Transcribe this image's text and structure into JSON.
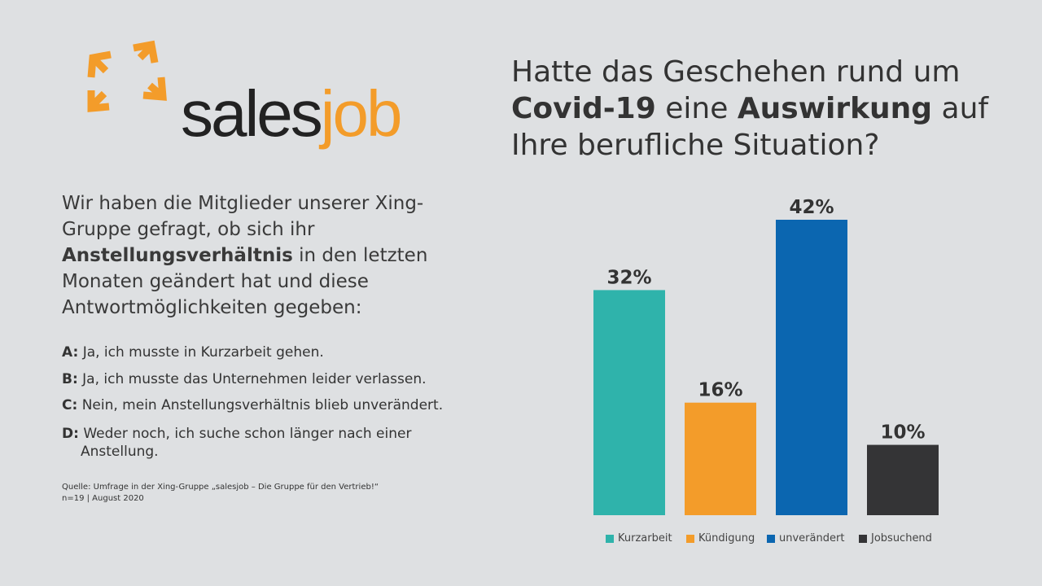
{
  "logo": {
    "word_part1": "sales",
    "word_part2": "job",
    "icon": "four-outward-arrows-icon"
  },
  "title": {
    "part1": "Hatte das Geschehen rund um",
    "bold1": "Covid-19",
    "part2": "eine",
    "bold2": "Auswirkung",
    "part3": "auf",
    "line3": "Ihre berufliche Situation?"
  },
  "intro": {
    "part1": "Wir haben die Mitglieder unserer Xing-Gruppe gefragt, ob sich ihr",
    "bold": "Anstellungsverhältnis",
    "part2": "in den letzten Monaten geändert hat und diese Antwortmöglichkeiten gegeben:"
  },
  "options": [
    {
      "key": "A:",
      "text": "Ja, ich musste in Kurzarbeit gehen."
    },
    {
      "key": "B:",
      "text": "Ja, ich musste das Unternehmen leider verlassen."
    },
    {
      "key": "C:",
      "text": "Nein, mein Anstellungsverhältnis blieb unverändert."
    },
    {
      "key": "D:",
      "text": "Weder noch, ich suche schon länger nach einer",
      "text2": "Anstellung."
    }
  ],
  "source": {
    "line1": "Quelle: Umfrage  in der Xing-Gruppe „salesjob – Die Gruppe für den Vertrieb!“",
    "line2": "n=19 | August 2020"
  },
  "colors": {
    "background": "#dee0e2",
    "orange": "#f39c2a",
    "teal": "#2fb3ab",
    "blue": "#0b66b0",
    "dark": "#343436"
  },
  "chart_data": {
    "type": "bar",
    "categories": [
      "Kurzarbeit",
      "Kündigung",
      "unverändert",
      "Jobsuchend"
    ],
    "values": [
      32,
      16,
      42,
      10
    ],
    "labels": [
      "32%",
      "16%",
      "42%",
      "10%"
    ],
    "colors": [
      "#2fb3ab",
      "#f39c2a",
      "#0b66b0",
      "#343436"
    ],
    "ylim": [
      0,
      42
    ],
    "grid": false,
    "legend": "bottom"
  }
}
